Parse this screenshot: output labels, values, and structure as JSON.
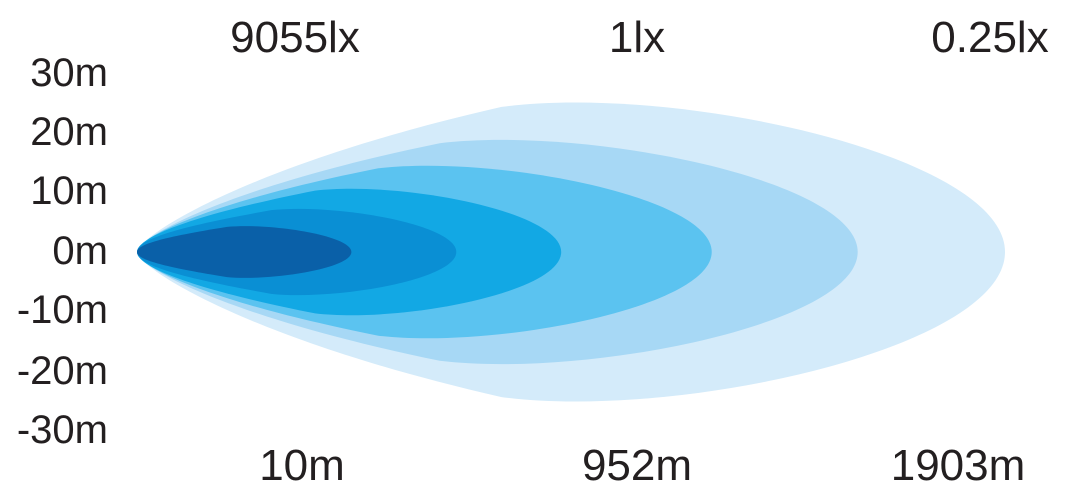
{
  "chart_data": {
    "type": "area",
    "title": "",
    "xlabel": "",
    "ylabel": "",
    "top_labels": [
      "9055lx",
      "1lx",
      "0.25lx"
    ],
    "bottom_labels": [
      "10m",
      "952m",
      "1903m"
    ],
    "y_ticks": [
      "30m",
      "20m",
      "10m",
      "0m",
      "-10m",
      "-20m",
      "-30m"
    ],
    "ylim": [
      -30,
      30
    ],
    "grid": false,
    "legend": "none",
    "beam_zones": [
      {
        "reach": 1903,
        "half_width": 26,
        "color": "#d4ebfa"
      },
      {
        "reach": 1580,
        "half_width": 19.5,
        "color": "#a7d8f5"
      },
      {
        "reach": 1260,
        "half_width": 15,
        "color": "#5bc3f0"
      },
      {
        "reach": 930,
        "half_width": 11,
        "color": "#12a8e4"
      },
      {
        "reach": 700,
        "half_width": 7.5,
        "color": "#0a8fd4"
      },
      {
        "reach": 470,
        "half_width": 4.5,
        "color": "#0a60a8"
      }
    ]
  }
}
